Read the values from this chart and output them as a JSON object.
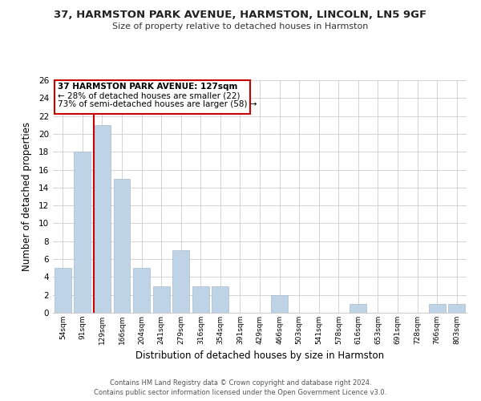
{
  "title": "37, HARMSTON PARK AVENUE, HARMSTON, LINCOLN, LN5 9GF",
  "subtitle": "Size of property relative to detached houses in Harmston",
  "xlabel": "Distribution of detached houses by size in Harmston",
  "ylabel": "Number of detached properties",
  "bar_labels": [
    "54sqm",
    "91sqm",
    "129sqm",
    "166sqm",
    "204sqm",
    "241sqm",
    "279sqm",
    "316sqm",
    "354sqm",
    "391sqm",
    "429sqm",
    "466sqm",
    "503sqm",
    "541sqm",
    "578sqm",
    "616sqm",
    "653sqm",
    "691sqm",
    "728sqm",
    "766sqm",
    "803sqm"
  ],
  "bar_values": [
    5,
    18,
    21,
    15,
    5,
    3,
    7,
    3,
    3,
    0,
    0,
    2,
    0,
    0,
    0,
    1,
    0,
    0,
    0,
    1,
    1
  ],
  "highlight_index": 2,
  "bar_color": "#bfd3e6",
  "highlight_line_color": "#cc0000",
  "ylim": [
    0,
    26
  ],
  "yticks": [
    0,
    2,
    4,
    6,
    8,
    10,
    12,
    14,
    16,
    18,
    20,
    22,
    24,
    26
  ],
  "annotation_title": "37 HARMSTON PARK AVENUE: 127sqm",
  "annotation_line1": "← 28% of detached houses are smaller (22)",
  "annotation_line2": "73% of semi-detached houses are larger (58) →",
  "footer1": "Contains HM Land Registry data © Crown copyright and database right 2024.",
  "footer2": "Contains public sector information licensed under the Open Government Licence v3.0."
}
